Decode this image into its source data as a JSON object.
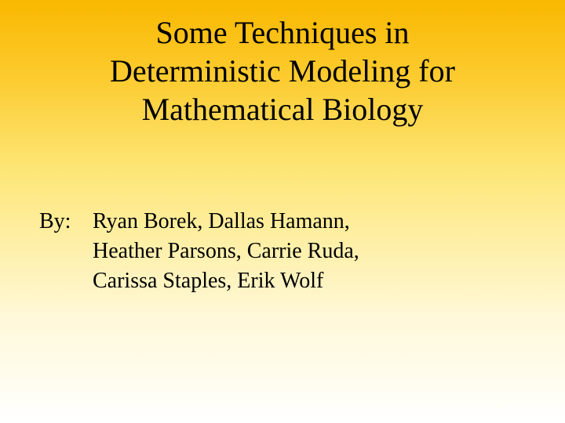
{
  "slide": {
    "title_line1": "Some Techniques in",
    "title_line2": "Deterministic Modeling for",
    "title_line3": "Mathematical Biology",
    "by_label": "By:",
    "authors_line1": "Ryan Borek, Dallas Hamann,",
    "authors_line2": "Heather Parsons, Carrie Ruda,",
    "authors_line3": "Carissa Staples, Erik Wolf",
    "background_gradient_top": "#f9b800",
    "background_gradient_bottom": "#ffffff",
    "title_fontsize": 40,
    "body_fontsize": 28,
    "text_color": "#000000",
    "font_family": "Times New Roman"
  }
}
